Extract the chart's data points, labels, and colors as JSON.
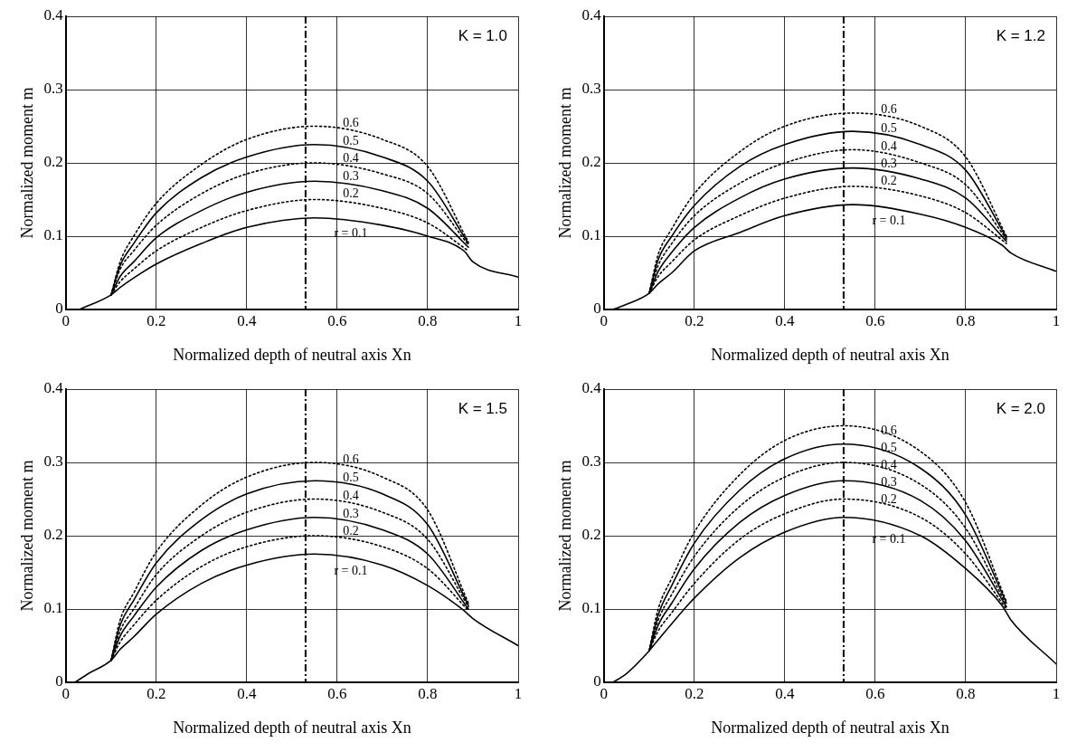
{
  "chart_data": [
    {
      "type": "line",
      "xlabel": "Normalized depth of neutral axis Xn",
      "ylabel": "Normalized moment m",
      "annotations": [
        "K = 1.0"
      ],
      "grid": true,
      "legend": false,
      "marker": "none",
      "xlim": [
        0,
        1
      ],
      "xticks": [
        0,
        0.2,
        0.4,
        0.6,
        0.8,
        1
      ],
      "ylim": [
        0,
        0.4
      ],
      "yticks": [
        0,
        0.1,
        0.2,
        0.3,
        0.4
      ],
      "ref_lines": [
        {
          "axis": "x",
          "value": 0.53,
          "line_style": "dashed",
          "color": "#000000"
        }
      ],
      "series": [
        {
          "name": "r = 0.1",
          "color": "#000000",
          "line_style": "solid",
          "x": [
            0.03,
            0.1,
            0.12,
            0.15,
            0.2,
            0.3,
            0.4,
            0.55,
            0.7,
            0.8,
            0.88,
            0.9,
            1
          ],
          "values": [
            0,
            0.02,
            0.03,
            0.043,
            0.062,
            0.09,
            0.112,
            0.125,
            0.115,
            0.1,
            0.08,
            0.065,
            0.044
          ]
        },
        {
          "name": "0.2",
          "color": "#000000",
          "line_style": "dotted",
          "x": [
            0.1,
            0.12,
            0.15,
            0.2,
            0.3,
            0.4,
            0.55,
            0.7,
            0.8,
            0.89
          ],
          "values": [
            0.02,
            0.038,
            0.055,
            0.08,
            0.112,
            0.135,
            0.15,
            0.138,
            0.118,
            0.08
          ]
        },
        {
          "name": "0.3",
          "color": "#000000",
          "line_style": "solid",
          "x": [
            0.1,
            0.12,
            0.15,
            0.2,
            0.3,
            0.4,
            0.55,
            0.7,
            0.8,
            0.89
          ],
          "values": [
            0.02,
            0.045,
            0.065,
            0.098,
            0.135,
            0.16,
            0.175,
            0.162,
            0.138,
            0.085
          ]
        },
        {
          "name": "0.4",
          "color": "#000000",
          "line_style": "dotted",
          "x": [
            0.1,
            0.12,
            0.15,
            0.2,
            0.3,
            0.4,
            0.55,
            0.7,
            0.8,
            0.89
          ],
          "values": [
            0.02,
            0.055,
            0.08,
            0.115,
            0.158,
            0.185,
            0.2,
            0.185,
            0.158,
            0.088
          ]
        },
        {
          "name": "0.5",
          "color": "#000000",
          "line_style": "solid",
          "x": [
            0.1,
            0.12,
            0.15,
            0.2,
            0.3,
            0.4,
            0.55,
            0.7,
            0.8,
            0.89
          ],
          "values": [
            0.02,
            0.06,
            0.09,
            0.132,
            0.18,
            0.208,
            0.225,
            0.208,
            0.175,
            0.09
          ]
        },
        {
          "name": "0.6",
          "color": "#000000",
          "line_style": "dotted",
          "x": [
            0.1,
            0.12,
            0.15,
            0.2,
            0.3,
            0.4,
            0.55,
            0.7,
            0.8,
            0.89
          ],
          "values": [
            0.02,
            0.065,
            0.1,
            0.145,
            0.198,
            0.232,
            0.25,
            0.232,
            0.195,
            0.092
          ]
        }
      ]
    },
    {
      "type": "line",
      "xlabel": "Normalized depth of neutral axis Xn",
      "ylabel": "Normalized moment m",
      "annotations": [
        "K = 1.2"
      ],
      "grid": true,
      "legend": false,
      "marker": "none",
      "xlim": [
        0,
        1
      ],
      "xticks": [
        0,
        0.2,
        0.4,
        0.6,
        0.8,
        1
      ],
      "ylim": [
        0,
        0.4
      ],
      "yticks": [
        0,
        0.1,
        0.2,
        0.3,
        0.4
      ],
      "ref_lines": [
        {
          "axis": "x",
          "value": 0.53,
          "line_style": "dashed",
          "color": "#000000"
        }
      ],
      "series": [
        {
          "name": "r = 0.1",
          "color": "#000000",
          "line_style": "solid",
          "x": [
            0.02,
            0.05,
            0.1,
            0.12,
            0.15,
            0.2,
            0.3,
            0.4,
            0.55,
            0.7,
            0.8,
            0.88,
            0.9,
            1
          ],
          "values": [
            0,
            0.007,
            0.022,
            0.035,
            0.05,
            0.08,
            0.105,
            0.128,
            0.143,
            0.13,
            0.112,
            0.088,
            0.077,
            0.052
          ]
        },
        {
          "name": "0.2",
          "color": "#000000",
          "line_style": "dotted",
          "x": [
            0.1,
            0.12,
            0.15,
            0.2,
            0.3,
            0.4,
            0.55,
            0.7,
            0.8,
            0.89
          ],
          "values": [
            0.022,
            0.045,
            0.065,
            0.095,
            0.128,
            0.152,
            0.168,
            0.155,
            0.132,
            0.09
          ]
        },
        {
          "name": "0.3",
          "color": "#000000",
          "line_style": "solid",
          "x": [
            0.1,
            0.12,
            0.15,
            0.2,
            0.3,
            0.4,
            0.55,
            0.7,
            0.8,
            0.89
          ],
          "values": [
            0.022,
            0.052,
            0.078,
            0.112,
            0.152,
            0.178,
            0.193,
            0.178,
            0.152,
            0.093
          ]
        },
        {
          "name": "0.4",
          "color": "#000000",
          "line_style": "dotted",
          "x": [
            0.1,
            0.12,
            0.15,
            0.2,
            0.3,
            0.4,
            0.55,
            0.7,
            0.8,
            0.89
          ],
          "values": [
            0.022,
            0.06,
            0.09,
            0.128,
            0.172,
            0.2,
            0.218,
            0.2,
            0.17,
            0.096
          ]
        },
        {
          "name": "0.5",
          "color": "#000000",
          "line_style": "solid",
          "x": [
            0.1,
            0.12,
            0.15,
            0.2,
            0.3,
            0.4,
            0.55,
            0.7,
            0.8,
            0.89
          ],
          "values": [
            0.022,
            0.068,
            0.1,
            0.142,
            0.195,
            0.225,
            0.243,
            0.225,
            0.19,
            0.098
          ]
        },
        {
          "name": "0.6",
          "color": "#000000",
          "line_style": "dotted",
          "x": [
            0.1,
            0.12,
            0.15,
            0.2,
            0.3,
            0.4,
            0.55,
            0.7,
            0.8,
            0.89
          ],
          "values": [
            0.022,
            0.075,
            0.11,
            0.158,
            0.215,
            0.25,
            0.268,
            0.25,
            0.208,
            0.1
          ]
        }
      ]
    },
    {
      "type": "line",
      "xlabel": "Normalized depth of neutral axis Xn",
      "ylabel": "Normalized moment m",
      "annotations": [
        "K = 1.5"
      ],
      "grid": true,
      "legend": false,
      "marker": "none",
      "xlim": [
        0,
        1
      ],
      "xticks": [
        0,
        0.2,
        0.4,
        0.6,
        0.8,
        1
      ],
      "ylim": [
        0,
        0.4
      ],
      "yticks": [
        0,
        0.1,
        0.2,
        0.3,
        0.4
      ],
      "ref_lines": [
        {
          "axis": "x",
          "value": 0.53,
          "line_style": "dashed",
          "color": "#000000"
        }
      ],
      "series": [
        {
          "name": "r = 0.1",
          "color": "#000000",
          "line_style": "solid",
          "x": [
            0.02,
            0.05,
            0.1,
            0.12,
            0.15,
            0.2,
            0.3,
            0.4,
            0.55,
            0.7,
            0.8,
            0.88,
            0.9,
            1
          ],
          "values": [
            0,
            0.012,
            0.03,
            0.045,
            0.062,
            0.093,
            0.135,
            0.16,
            0.175,
            0.16,
            0.132,
            0.098,
            0.087,
            0.05
          ]
        },
        {
          "name": "0.2",
          "color": "#000000",
          "line_style": "dotted",
          "x": [
            0.1,
            0.12,
            0.15,
            0.2,
            0.3,
            0.4,
            0.55,
            0.7,
            0.8,
            0.89
          ],
          "values": [
            0.03,
            0.055,
            0.078,
            0.112,
            0.158,
            0.185,
            0.2,
            0.185,
            0.155,
            0.098
          ]
        },
        {
          "name": "0.3",
          "color": "#000000",
          "line_style": "solid",
          "x": [
            0.1,
            0.12,
            0.15,
            0.2,
            0.3,
            0.4,
            0.55,
            0.7,
            0.8,
            0.89
          ],
          "values": [
            0.03,
            0.063,
            0.09,
            0.13,
            0.18,
            0.208,
            0.225,
            0.208,
            0.175,
            0.1
          ]
        },
        {
          "name": "0.4",
          "color": "#000000",
          "line_style": "dotted",
          "x": [
            0.1,
            0.12,
            0.15,
            0.2,
            0.3,
            0.4,
            0.55,
            0.7,
            0.8,
            0.89
          ],
          "values": [
            0.03,
            0.07,
            0.1,
            0.147,
            0.2,
            0.232,
            0.25,
            0.232,
            0.195,
            0.103
          ]
        },
        {
          "name": "0.5",
          "color": "#000000",
          "line_style": "solid",
          "x": [
            0.1,
            0.12,
            0.15,
            0.2,
            0.3,
            0.4,
            0.55,
            0.7,
            0.8,
            0.89
          ],
          "values": [
            0.03,
            0.078,
            0.112,
            0.163,
            0.222,
            0.257,
            0.275,
            0.257,
            0.215,
            0.105
          ]
        },
        {
          "name": "0.6",
          "color": "#000000",
          "line_style": "dotted",
          "x": [
            0.1,
            0.12,
            0.15,
            0.2,
            0.3,
            0.4,
            0.55,
            0.7,
            0.8,
            0.89
          ],
          "values": [
            0.03,
            0.085,
            0.122,
            0.178,
            0.242,
            0.28,
            0.3,
            0.28,
            0.235,
            0.108
          ]
        }
      ]
    },
    {
      "type": "line",
      "xlabel": "Normalized depth of neutral axis Xn",
      "ylabel": "Normalized moment m",
      "annotations": [
        "K = 2.0"
      ],
      "grid": true,
      "legend": false,
      "marker": "none",
      "xlim": [
        0,
        1
      ],
      "xticks": [
        0,
        0.2,
        0.4,
        0.6,
        0.8,
        1
      ],
      "ylim": [
        0,
        0.4
      ],
      "yticks": [
        0,
        0.1,
        0.2,
        0.3,
        0.4
      ],
      "ref_lines": [
        {
          "axis": "x",
          "value": 0.53,
          "line_style": "dashed",
          "color": "#000000"
        }
      ],
      "series": [
        {
          "name": "r = 0.1",
          "color": "#000000",
          "line_style": "solid",
          "x": [
            0.02,
            0.05,
            0.1,
            0.12,
            0.15,
            0.2,
            0.3,
            0.4,
            0.53,
            0.7,
            0.8,
            0.88,
            0.9,
            1
          ],
          "values": [
            0,
            0.012,
            0.043,
            0.058,
            0.08,
            0.115,
            0.17,
            0.205,
            0.225,
            0.2,
            0.155,
            0.105,
            0.085,
            0.025
          ]
        },
        {
          "name": "0.2",
          "color": "#000000",
          "line_style": "dotted",
          "x": [
            0.1,
            0.12,
            0.15,
            0.2,
            0.3,
            0.4,
            0.53,
            0.7,
            0.8,
            0.89
          ],
          "values": [
            0.043,
            0.07,
            0.095,
            0.135,
            0.195,
            0.23,
            0.25,
            0.225,
            0.175,
            0.1
          ]
        },
        {
          "name": "0.3",
          "color": "#000000",
          "line_style": "solid",
          "x": [
            0.1,
            0.12,
            0.15,
            0.2,
            0.3,
            0.4,
            0.53,
            0.7,
            0.8,
            0.89
          ],
          "values": [
            0.043,
            0.078,
            0.108,
            0.155,
            0.218,
            0.255,
            0.275,
            0.248,
            0.193,
            0.103
          ]
        },
        {
          "name": "0.4",
          "color": "#000000",
          "line_style": "dotted",
          "x": [
            0.1,
            0.12,
            0.15,
            0.2,
            0.3,
            0.4,
            0.53,
            0.7,
            0.8,
            0.89
          ],
          "values": [
            0.043,
            0.085,
            0.12,
            0.172,
            0.24,
            0.28,
            0.3,
            0.27,
            0.21,
            0.105
          ]
        },
        {
          "name": "0.5",
          "color": "#000000",
          "line_style": "solid",
          "x": [
            0.1,
            0.12,
            0.15,
            0.2,
            0.3,
            0.4,
            0.53,
            0.7,
            0.8,
            0.89
          ],
          "values": [
            0.043,
            0.092,
            0.132,
            0.19,
            0.262,
            0.305,
            0.325,
            0.292,
            0.228,
            0.108
          ]
        },
        {
          "name": "0.6",
          "color": "#000000",
          "line_style": "dotted",
          "x": [
            0.1,
            0.12,
            0.15,
            0.2,
            0.3,
            0.4,
            0.53,
            0.7,
            0.8,
            0.89
          ],
          "values": [
            0.043,
            0.1,
            0.142,
            0.205,
            0.283,
            0.33,
            0.35,
            0.315,
            0.245,
            0.11
          ]
        }
      ]
    }
  ]
}
